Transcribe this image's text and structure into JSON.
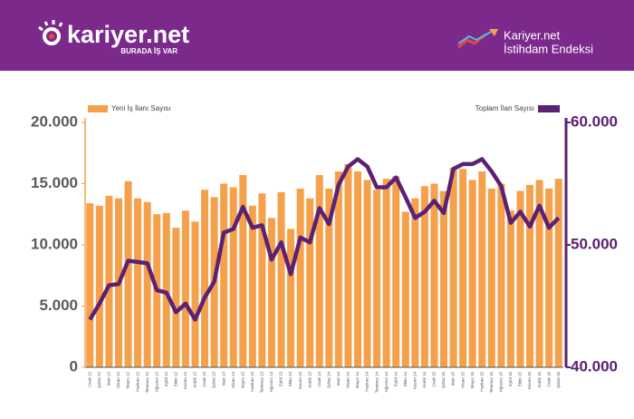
{
  "header": {
    "brand": "kariyer.net",
    "slogan": "BURADA İŞ VAR",
    "index_line1": "Kariyer.net",
    "index_line2": "İstihdam Endeksi"
  },
  "chart_data": {
    "type": "bar_line",
    "categories": [
      "Ocak 12",
      "Şubat 12",
      "Mart 12",
      "Nisan 12",
      "Mayıs 12",
      "Haziran 12",
      "Temmuz 12",
      "Ağustos 12",
      "Eylül 12",
      "Ekim 12",
      "Kasım 12",
      "Aralık 12",
      "Ocak 13",
      "Şubat 13",
      "Mart 13",
      "Nisan 13",
      "Mayıs 13",
      "Haziran 13",
      "Temmuz 13",
      "Ağustos 13",
      "Eylül 13",
      "Ekim 13",
      "Kasım 13",
      "Aralık 13",
      "Ocak 14",
      "Şubat 14",
      "Mart 14",
      "Nisan 14",
      "Mayıs 14",
      "Haziran 14",
      "Temmuz 14",
      "Ağustos 14",
      "Eylül 14",
      "Ekim 14",
      "Kasım 14",
      "Aralık 14",
      "Ocak 15",
      "Şubat 15",
      "Mart 15",
      "Nisan 15",
      "Mayıs 15",
      "Haziran 15",
      "Temmuz 15",
      "Ağustos 15",
      "Eylül 15",
      "Ekim 15",
      "Kasım 15",
      "Aralık 15",
      "Ocak 16",
      "Şubat 16"
    ],
    "series": [
      {
        "name": "Yeni İş İlanı Sayısı",
        "color": "#f5a04a",
        "kind": "bar",
        "values": [
          13400,
          13200,
          14000,
          13800,
          15200,
          13800,
          13500,
          12500,
          12600,
          11400,
          12800,
          11900,
          14500,
          13900,
          15000,
          14700,
          15700,
          13200,
          14200,
          12200,
          14300,
          11300,
          14600,
          13800,
          15700,
          14600,
          16000,
          16600,
          16000,
          15300,
          14500,
          15400,
          15600,
          12700,
          13800,
          14800,
          15000,
          14400,
          16300,
          16200,
          15300,
          16000,
          14600,
          15000,
          12800,
          14400,
          14900,
          15300,
          14600,
          15400
        ]
      },
      {
        "name": "Toplam İlan Sayısı",
        "color": "#5b2173",
        "kind": "line",
        "axis": "y2",
        "values": [
          43900,
          45200,
          46700,
          46800,
          48700,
          48600,
          48500,
          46300,
          46100,
          44500,
          45200,
          43900,
          45700,
          47000,
          51000,
          51300,
          53100,
          51400,
          51600,
          48800,
          50200,
          47600,
          50600,
          50200,
          53000,
          51700,
          54900,
          56400,
          57000,
          56400,
          54700,
          54700,
          55500,
          53900,
          52200,
          52700,
          53600,
          52600,
          56200,
          56600,
          56600,
          57000,
          56000,
          54800,
          51800,
          52700,
          51500,
          53200,
          51400,
          52200
        ]
      }
    ],
    "ylim": [
      0,
      20000
    ],
    "yticks": [
      0,
      {
        "value": 5000,
        "label": "5.000"
      },
      {
        "value": 10000,
        "label": "10.000"
      },
      {
        "value": 15000,
        "label": "15.000"
      },
      {
        "value": 20000,
        "label": "20.000"
      }
    ],
    "y2lim": [
      40000,
      60000
    ],
    "y2ticks": [
      {
        "value": 40000,
        "label": "40.000"
      },
      {
        "value": 50000,
        "label": "50.000"
      },
      {
        "value": 60000,
        "label": "60.000"
      }
    ]
  }
}
